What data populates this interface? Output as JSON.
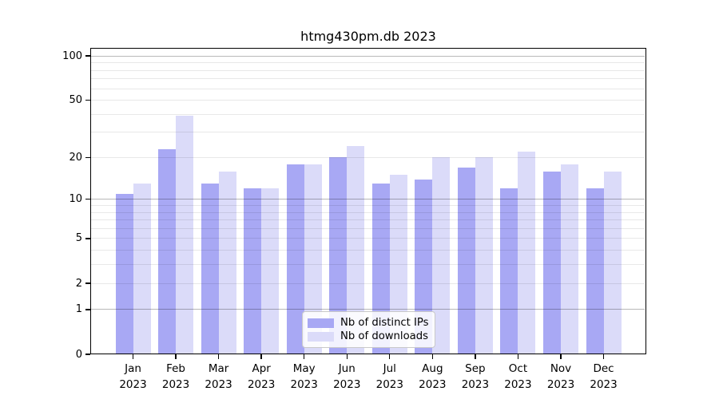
{
  "chart_data": {
    "type": "bar",
    "title": "htmg430pm.db 2023",
    "months": [
      "Jan",
      "Feb",
      "Mar",
      "Apr",
      "May",
      "Jun",
      "Jul",
      "Aug",
      "Sep",
      "Oct",
      "Nov",
      "Dec"
    ],
    "year_label": "2023",
    "series": [
      {
        "name": "Nb of distinct IPs",
        "color": "#a8a8f4",
        "values": [
          11,
          23,
          13,
          12,
          18,
          20,
          13,
          14,
          17,
          12,
          16,
          12
        ]
      },
      {
        "name": "Nb of downloads",
        "color": "#dbdbf9",
        "values": [
          13,
          39,
          16,
          12,
          18,
          24,
          15,
          20,
          20,
          22,
          18,
          16
        ]
      }
    ],
    "y_axis": {
      "scale": "log1p",
      "tick_labels": [
        "0",
        "1",
        "2",
        "5",
        "10",
        "20",
        "50",
        "100"
      ],
      "ticks": [
        0,
        1,
        2,
        5,
        10,
        20,
        50,
        100
      ],
      "range": [
        0,
        110
      ]
    },
    "grid": {
      "major_values": [
        1,
        10,
        100
      ],
      "minor_values": [
        2,
        3,
        4,
        5,
        6,
        7,
        8,
        9,
        20,
        30,
        40,
        50,
        60,
        70,
        80,
        90
      ],
      "major_color": "rgba(0,0,0,0.28)",
      "minor_color": "rgba(0,0,0,0.09)"
    },
    "legend": {
      "position": "lower center",
      "entries": [
        "Nb of distinct IPs",
        "Nb of downloads"
      ]
    },
    "axis_color": "#000000",
    "text_color": "#000000",
    "background_color": "#ffffff"
  }
}
